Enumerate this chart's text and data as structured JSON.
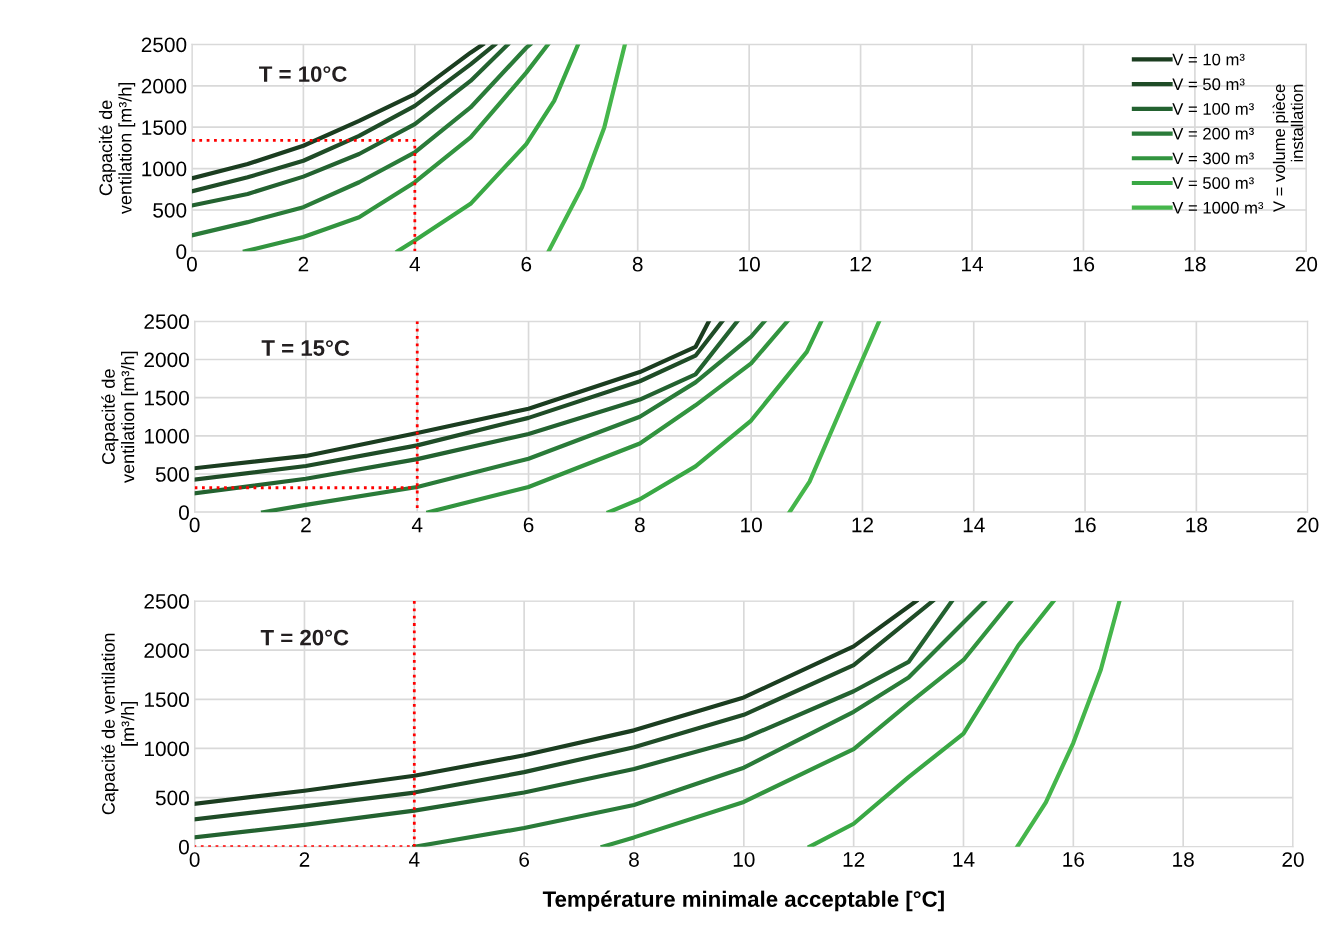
{
  "chart_data": [
    {
      "type": "line",
      "ylabel": "Capacité de\nventilation [m³/h]",
      "xlim": [
        0,
        20
      ],
      "ylim": [
        0,
        2500
      ],
      "xticks": [
        0,
        2,
        4,
        6,
        8,
        10,
        12,
        14,
        16,
        18,
        20
      ],
      "yticks": [
        0,
        500,
        1000,
        1500,
        2000,
        2500
      ],
      "grid": true,
      "legend": "top right",
      "line_style": "solid",
      "annotations": [
        "T = 10°C",
        "V = volume pièce\ninstallation"
      ],
      "series": [
        {
          "name": "V = 10 m³",
          "color": "#1b3d20",
          "x": [
            0,
            1,
            2,
            3,
            4,
            5,
            5.22
          ],
          "values": [
            883,
            1055,
            1276,
            1577,
            1900,
            2400,
            2500
          ]
        },
        {
          "name": "V = 50 m³",
          "color": "#1f4c27",
          "x": [
            0,
            1,
            2,
            3,
            4,
            5,
            5.44
          ],
          "values": [
            726,
            895,
            1095,
            1396,
            1758,
            2259,
            2500
          ]
        },
        {
          "name": "V = 100 m³",
          "color": "#236230",
          "x": [
            0,
            1,
            2,
            3,
            4,
            5,
            5.67
          ],
          "values": [
            554,
            694,
            903,
            1176,
            1537,
            2059,
            2500
          ]
        },
        {
          "name": "V = 200 m³",
          "color": "#2a7b39",
          "x": [
            0,
            1,
            2,
            3,
            4,
            5,
            6,
            6.07
          ],
          "values": [
            193,
            353,
            534,
            835,
            1196,
            1738,
            2460,
            2500
          ]
        },
        {
          "name": "V = 300 m³",
          "color": "#32943f",
          "x": [
            0.95,
            2,
            3,
            4,
            5,
            6,
            6.39
          ],
          "values": [
            0,
            173,
            413,
            835,
            1376,
            2159,
            2500
          ]
        },
        {
          "name": "V = 500 m³",
          "color": "#39a844",
          "x": [
            3.69,
            4,
            5,
            6,
            6.5,
            6.93
          ],
          "values": [
            0,
            132,
            574,
            1296,
            1818,
            2500
          ]
        },
        {
          "name": "V = 1000 m³",
          "color": "#45b64b",
          "x": [
            6.4,
            7,
            7.4,
            7.77
          ],
          "values": [
            0,
            774,
            1497,
            2500
          ]
        },
        {
          "color": "#ff0000",
          "line_style": "dotted",
          "x": [
            0,
            4,
            4
          ],
          "values": [
            1340,
            1340,
            0
          ]
        }
      ]
    },
    {
      "type": "line",
      "ylabel": "Capacité de\nventilation [m³/h]",
      "xlim": [
        0,
        20
      ],
      "ylim": [
        0,
        2500
      ],
      "xticks": [
        0,
        2,
        4,
        6,
        8,
        10,
        12,
        14,
        16,
        18,
        20
      ],
      "yticks": [
        0,
        500,
        1000,
        1500,
        2000,
        2500
      ],
      "grid": true,
      "line_style": "solid",
      "annotations": [
        "T = 15°C"
      ],
      "series": [
        {
          "color": "#1b3d20",
          "x": [
            0,
            2,
            4,
            6,
            8,
            9,
            9.24
          ],
          "values": [
            576,
            737,
            1037,
            1355,
            1835,
            2164,
            2500
          ]
        },
        {
          "color": "#1f4c27",
          "x": [
            0,
            2,
            4,
            6,
            8,
            9,
            9.48
          ],
          "values": [
            426,
            605,
            875,
            1235,
            1715,
            2050,
            2500
          ]
        },
        {
          "color": "#236230",
          "x": [
            0,
            2,
            4,
            6,
            8,
            9,
            9.75
          ],
          "values": [
            246,
            438,
            695,
            1025,
            1475,
            1805,
            2500
          ]
        },
        {
          "color": "#2a7b39",
          "x": [
            1.23,
            2,
            4,
            6,
            8,
            9,
            10,
            10.24
          ],
          "values": [
            0,
            96,
            330,
            700,
            1250,
            1700,
            2300,
            2500
          ]
        },
        {
          "color": "#32943f",
          "x": [
            4.2,
            6,
            8,
            9,
            10,
            10.65
          ],
          "values": [
            0,
            330,
            900,
            1400,
            1950,
            2500
          ]
        },
        {
          "color": "#39a844",
          "x": [
            7.44,
            8,
            9,
            10,
            11,
            11.26
          ],
          "values": [
            0,
            170,
            600,
            1200,
            2100,
            2500
          ]
        },
        {
          "color": "#45b64b",
          "x": [
            10.69,
            11.05,
            12,
            12.3
          ],
          "values": [
            0,
            400,
            2000,
            2500
          ]
        },
        {
          "color": "#ff0000",
          "line_style": "dotted",
          "x": [
            4,
            4
          ],
          "values": [
            2500,
            0
          ]
        },
        {
          "color": "#ff0000",
          "line_style": "dotted",
          "x": [
            0,
            4
          ],
          "values": [
            320,
            320
          ]
        }
      ]
    },
    {
      "type": "line",
      "ylabel": "Capacité de ventilation\n[m³/h]",
      "xlabel": "Température minimale acceptable [°C]",
      "xlim": [
        0,
        20
      ],
      "ylim": [
        0,
        2500
      ],
      "xticks": [
        0,
        2,
        4,
        6,
        8,
        10,
        12,
        14,
        16,
        18,
        20
      ],
      "yticks": [
        0,
        500,
        1000,
        1500,
        2000,
        2500
      ],
      "grid": true,
      "line_style": "solid",
      "annotations": [
        "T = 20°C"
      ],
      "series": [
        {
          "color": "#1b3d20",
          "x": [
            0,
            2,
            4,
            6,
            8,
            10,
            12,
            13.14
          ],
          "values": [
            437,
            570,
            722,
            930,
            1184,
            1519,
            2038,
            2500
          ]
        },
        {
          "color": "#1f4c27",
          "x": [
            0,
            2,
            4,
            6,
            8,
            10,
            12,
            13.44
          ],
          "values": [
            278,
            411,
            551,
            759,
            1013,
            1342,
            1848,
            2500
          ]
        },
        {
          "color": "#236230",
          "x": [
            0,
            2,
            4,
            6,
            8,
            10,
            12,
            13,
            13.79
          ],
          "values": [
            95,
            222,
            367,
            551,
            791,
            1101,
            1582,
            1880,
            2500
          ]
        },
        {
          "color": "#2a7b39",
          "x": [
            4,
            6,
            8,
            10,
            12,
            13,
            14.39
          ],
          "values": [
            0,
            190,
            424,
            804,
            1373,
            1722,
            2500
          ]
        },
        {
          "color": "#32943f",
          "x": [
            7.43,
            8,
            10,
            12,
            13,
            14,
            14.87
          ],
          "values": [
            0,
            95,
            456,
            994,
            1456,
            1900,
            2500
          ]
        },
        {
          "color": "#39a844",
          "x": [
            11.2,
            12,
            13,
            14,
            15,
            15.64
          ],
          "values": [
            0,
            234,
            709,
            1150,
            2050,
            2500
          ]
        },
        {
          "color": "#45b64b",
          "x": [
            14.98,
            15.5,
            16,
            16.5,
            16.84
          ],
          "values": [
            0,
            450,
            1057,
            1800,
            2500
          ]
        },
        {
          "color": "#ff0000",
          "line_style": "dotted",
          "x": [
            4,
            4,
            0
          ],
          "values": [
            2500,
            0,
            0
          ]
        }
      ]
    }
  ]
}
